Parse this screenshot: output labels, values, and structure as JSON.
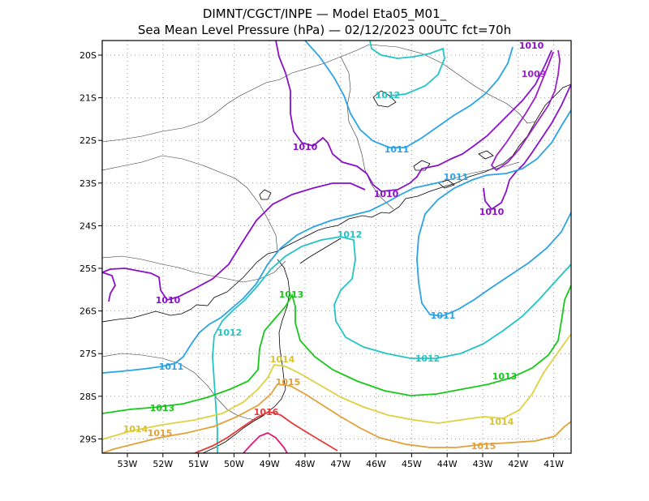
{
  "title": {
    "line1": "DIMNT/CGCT/INPE —  Model Eta05_M01_",
    "line2": "Sea Mean Level Pressure (hPa) — 02/12/2023 00UTC fct=70h"
  },
  "axes": {
    "lon_labels": [
      "53W",
      "52W",
      "51W",
      "50W",
      "49W",
      "48W",
      "47W",
      "46W",
      "45W",
      "44W",
      "43W",
      "42W",
      "41W"
    ],
    "lat_labels": [
      "20S",
      "21S",
      "22S",
      "23S",
      "24S",
      "25S",
      "26S",
      "27S",
      "28S",
      "29S"
    ]
  },
  "colors": {
    "c1009": "#9b1fc9",
    "c1010": "#8a10c8",
    "c1011": "#2ba3e6",
    "c1012": "#22c4c4",
    "c1013": "#18c818",
    "c1014": "#e0d040",
    "c1015": "#e2a038",
    "c1016": "#e83838",
    "c1017": "#e01878"
  },
  "isobars": [
    {
      "level": "1009",
      "labels": [
        "1009"
      ]
    },
    {
      "level": "1010",
      "labels": [
        "1010",
        "1010",
        "1010",
        "1010",
        "1010"
      ]
    },
    {
      "level": "1011",
      "labels": [
        "1011",
        "1011",
        "1011",
        "1011"
      ]
    },
    {
      "level": "1012",
      "labels": [
        "1012",
        "1012",
        "1012",
        "1012"
      ]
    },
    {
      "level": "1013",
      "labels": [
        "1013",
        "1013",
        "1013"
      ]
    },
    {
      "level": "1014",
      "labels": [
        "1014",
        "1014",
        "1014"
      ]
    },
    {
      "level": "1015",
      "labels": [
        "1015",
        "1015",
        "1015"
      ]
    },
    {
      "level": "1016",
      "labels": [
        "1016"
      ]
    }
  ]
}
